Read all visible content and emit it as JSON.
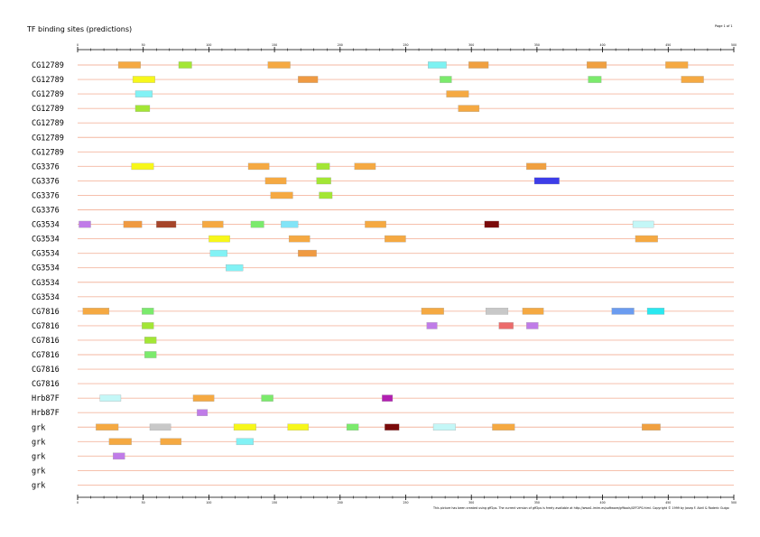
{
  "page": {
    "title": "TF binding sites (predictions)",
    "page_label": "Page 1 of 1",
    "footer": "This picture has been created using gff2ps. The current version of gff2ps is freely available at http://www1.imim.es/software/gfftools/GFF2PS.html. Copyright © 1999 by Josep F. Abril & Roderic Guigo"
  },
  "chart_data": {
    "type": "feature-track",
    "title": "TF binding sites (predictions)",
    "xlim": [
      0,
      500
    ],
    "ticks_major": [
      0,
      50,
      100,
      150,
      200,
      250,
      300,
      350,
      400,
      450,
      500
    ],
    "tick_labels": [
      "0",
      "50",
      "100",
      "150",
      "200",
      "250",
      "300",
      "350",
      "400",
      "450",
      "500"
    ],
    "tracks": [
      {
        "label": "CG12789",
        "features": [
          {
            "start": 31,
            "end": 48,
            "color": "#f5a942"
          },
          {
            "start": 77,
            "end": 87,
            "color": "#a3e635"
          },
          {
            "start": 145,
            "end": 162,
            "color": "#f5a942"
          },
          {
            "start": 267,
            "end": 281,
            "color": "#7df2f2"
          },
          {
            "start": 298,
            "end": 313,
            "color": "#f0a040"
          },
          {
            "start": 388,
            "end": 403,
            "color": "#f0a040"
          },
          {
            "start": 448,
            "end": 465,
            "color": "#f5a942"
          }
        ]
      },
      {
        "label": "CG12789",
        "features": [
          {
            "start": 42,
            "end": 59,
            "color": "#f7f71a"
          },
          {
            "start": 168,
            "end": 183,
            "color": "#ef9a42"
          },
          {
            "start": 276,
            "end": 285,
            "color": "#7bea6c"
          },
          {
            "start": 389,
            "end": 399,
            "color": "#7bea6c"
          },
          {
            "start": 460,
            "end": 477,
            "color": "#f5a942"
          }
        ]
      },
      {
        "label": "CG12789",
        "features": [
          {
            "start": 44,
            "end": 57,
            "color": "#82f2f5"
          },
          {
            "start": 281,
            "end": 298,
            "color": "#f5a942"
          }
        ]
      },
      {
        "label": "CG12789",
        "features": [
          {
            "start": 44,
            "end": 55,
            "color": "#a3e635"
          },
          {
            "start": 290,
            "end": 306,
            "color": "#f5a942"
          }
        ]
      },
      {
        "label": "CG12789",
        "features": []
      },
      {
        "label": "CG12789",
        "features": []
      },
      {
        "label": "CG12789",
        "features": []
      },
      {
        "label": "CG3376",
        "features": [
          {
            "start": 41,
            "end": 58,
            "color": "#f7f71a"
          },
          {
            "start": 130,
            "end": 146,
            "color": "#f5a942"
          },
          {
            "start": 182,
            "end": 192,
            "color": "#a3e635"
          },
          {
            "start": 211,
            "end": 227,
            "color": "#f5a942"
          },
          {
            "start": 342,
            "end": 357,
            "color": "#f0a040"
          }
        ]
      },
      {
        "label": "CG3376",
        "features": [
          {
            "start": 143,
            "end": 159,
            "color": "#f5a942"
          },
          {
            "start": 182,
            "end": 193,
            "color": "#a3e635"
          },
          {
            "start": 348,
            "end": 367,
            "color": "#3d3de8"
          }
        ]
      },
      {
        "label": "CG3376",
        "features": [
          {
            "start": 147,
            "end": 164,
            "color": "#f5a942"
          },
          {
            "start": 184,
            "end": 194,
            "color": "#a3e635"
          }
        ]
      },
      {
        "label": "CG3376",
        "features": []
      },
      {
        "label": "CG3534",
        "features": [
          {
            "start": 1,
            "end": 10,
            "color": "#c07ce8"
          },
          {
            "start": 35,
            "end": 49,
            "color": "#ef9a42"
          },
          {
            "start": 60,
            "end": 75,
            "color": "#a6452a"
          },
          {
            "start": 95,
            "end": 111,
            "color": "#f5a942"
          },
          {
            "start": 132,
            "end": 142,
            "color": "#7bea6c"
          },
          {
            "start": 155,
            "end": 168,
            "color": "#82e4f7"
          },
          {
            "start": 219,
            "end": 235,
            "color": "#f5a942"
          },
          {
            "start": 310,
            "end": 321,
            "color": "#7a0a0a"
          },
          {
            "start": 423,
            "end": 439,
            "color": "#c4f7f7"
          }
        ]
      },
      {
        "label": "CG3534",
        "features": [
          {
            "start": 100,
            "end": 116,
            "color": "#f7f71a"
          },
          {
            "start": 161,
            "end": 177,
            "color": "#f5a942"
          },
          {
            "start": 234,
            "end": 250,
            "color": "#f5a942"
          },
          {
            "start": 425,
            "end": 442,
            "color": "#f5a942"
          }
        ]
      },
      {
        "label": "CG3534",
        "features": [
          {
            "start": 101,
            "end": 114,
            "color": "#82f2f5"
          },
          {
            "start": 168,
            "end": 182,
            "color": "#ef9a42"
          }
        ]
      },
      {
        "label": "CG3534",
        "features": [
          {
            "start": 113,
            "end": 126,
            "color": "#82f2f5"
          }
        ]
      },
      {
        "label": "CG3534",
        "features": []
      },
      {
        "label": "CG3534",
        "features": []
      },
      {
        "label": "CG7816",
        "features": [
          {
            "start": 4,
            "end": 24,
            "color": "#f5a942"
          },
          {
            "start": 49,
            "end": 58,
            "color": "#7bea6c"
          },
          {
            "start": 262,
            "end": 279,
            "color": "#f5a942"
          },
          {
            "start": 311,
            "end": 328,
            "color": "#c8c8c8"
          },
          {
            "start": 339,
            "end": 355,
            "color": "#f5a942"
          },
          {
            "start": 407,
            "end": 424,
            "color": "#6b9cf0"
          },
          {
            "start": 434,
            "end": 447,
            "color": "#2ae8f0"
          }
        ]
      },
      {
        "label": "CG7816",
        "features": [
          {
            "start": 49,
            "end": 58,
            "color": "#a3e635"
          },
          {
            "start": 266,
            "end": 274,
            "color": "#c07ce8"
          },
          {
            "start": 321,
            "end": 332,
            "color": "#ec6b6b"
          },
          {
            "start": 342,
            "end": 351,
            "color": "#c07ce8"
          }
        ]
      },
      {
        "label": "CG7816",
        "features": [
          {
            "start": 51,
            "end": 60,
            "color": "#a3e635"
          }
        ]
      },
      {
        "label": "CG7816",
        "features": [
          {
            "start": 51,
            "end": 60,
            "color": "#7bea6c"
          }
        ]
      },
      {
        "label": "CG7816",
        "features": []
      },
      {
        "label": "CG7816",
        "features": []
      },
      {
        "label": "Hrb87F",
        "features": [
          {
            "start": 17,
            "end": 33,
            "color": "#c4f7f7"
          },
          {
            "start": 88,
            "end": 104,
            "color": "#f5a942"
          },
          {
            "start": 140,
            "end": 149,
            "color": "#7bea6c"
          },
          {
            "start": 232,
            "end": 240,
            "color": "#b21fb2"
          }
        ]
      },
      {
        "label": "Hrb87F",
        "features": [
          {
            "start": 91,
            "end": 99,
            "color": "#c07ce8"
          }
        ]
      },
      {
        "label": "grk",
        "features": [
          {
            "start": 14,
            "end": 31,
            "color": "#f5a942"
          },
          {
            "start": 55,
            "end": 71,
            "color": "#c8c8c8"
          },
          {
            "start": 119,
            "end": 136,
            "color": "#f7f71a"
          },
          {
            "start": 160,
            "end": 176,
            "color": "#f7f71a"
          },
          {
            "start": 205,
            "end": 214,
            "color": "#7bea6c"
          },
          {
            "start": 234,
            "end": 245,
            "color": "#7a0a0a"
          },
          {
            "start": 271,
            "end": 288,
            "color": "#c4f7f7"
          },
          {
            "start": 316,
            "end": 333,
            "color": "#f5a942"
          },
          {
            "start": 430,
            "end": 444,
            "color": "#f0a040"
          }
        ]
      },
      {
        "label": "grk",
        "features": [
          {
            "start": 24,
            "end": 41,
            "color": "#f5a942"
          },
          {
            "start": 63,
            "end": 79,
            "color": "#f5a942"
          },
          {
            "start": 121,
            "end": 134,
            "color": "#82f2f5"
          }
        ]
      },
      {
        "label": "grk",
        "features": [
          {
            "start": 27,
            "end": 36,
            "color": "#c07ce8"
          }
        ]
      },
      {
        "label": "grk",
        "features": []
      },
      {
        "label": "grk",
        "features": []
      }
    ]
  }
}
